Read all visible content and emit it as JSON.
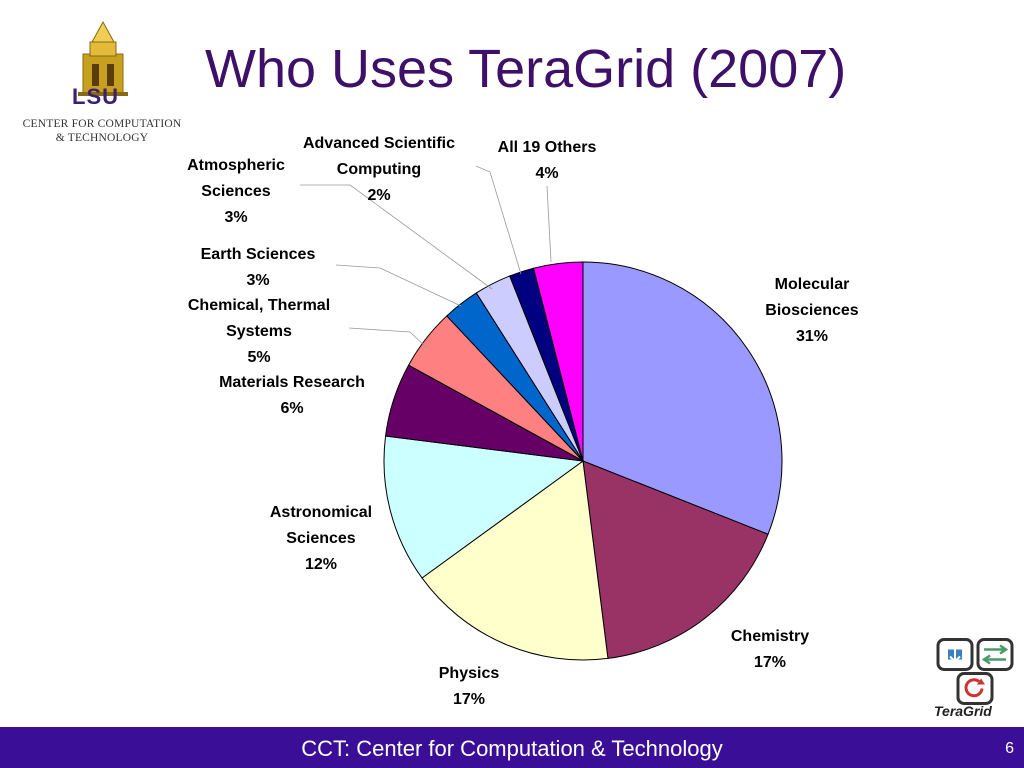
{
  "slide": {
    "title": "Who Uses TeraGrid (2007)",
    "page_number": "6"
  },
  "logos": {
    "lsu": "LSU",
    "cct_line1": "CENTER FOR COMPUTATION",
    "cct_line2": "& TECHNOLOGY",
    "teragrid": "TeraGrid"
  },
  "footer": {
    "text": "CCT: Center for Computation & Technology"
  },
  "chart_data": {
    "type": "pie",
    "title": "",
    "slices": [
      {
        "label": "Molecular Biosciences",
        "value": 31,
        "display": "31%",
        "color": "#9999ff"
      },
      {
        "label": "Chemistry",
        "value": 17,
        "display": "17%",
        "color": "#993366"
      },
      {
        "label": "Physics",
        "value": 17,
        "display": "17%",
        "color": "#ffffcc"
      },
      {
        "label": "Astronomical Sciences",
        "value": 12,
        "display": "12%",
        "color": "#ccffff"
      },
      {
        "label": "Materials Research",
        "value": 6,
        "display": "6%",
        "color": "#660066"
      },
      {
        "label": "Chemical, Thermal Systems",
        "value": 5,
        "display": "5%",
        "color": "#ff8080"
      },
      {
        "label": "Earth Sciences",
        "value": 3,
        "display": "3%",
        "color": "#0066cc"
      },
      {
        "label": "Atmospheric Sciences",
        "value": 3,
        "display": "3%",
        "color": "#ccccff"
      },
      {
        "label": "Advanced Scientific Computing",
        "value": 2,
        "display": "2%",
        "color": "#000080"
      },
      {
        "label": "All 19 Others",
        "value": 4,
        "display": "4%",
        "color": "#ff00ff"
      }
    ],
    "start_angle": "12 o'clock",
    "direction": "clockwise",
    "legend": "none"
  }
}
